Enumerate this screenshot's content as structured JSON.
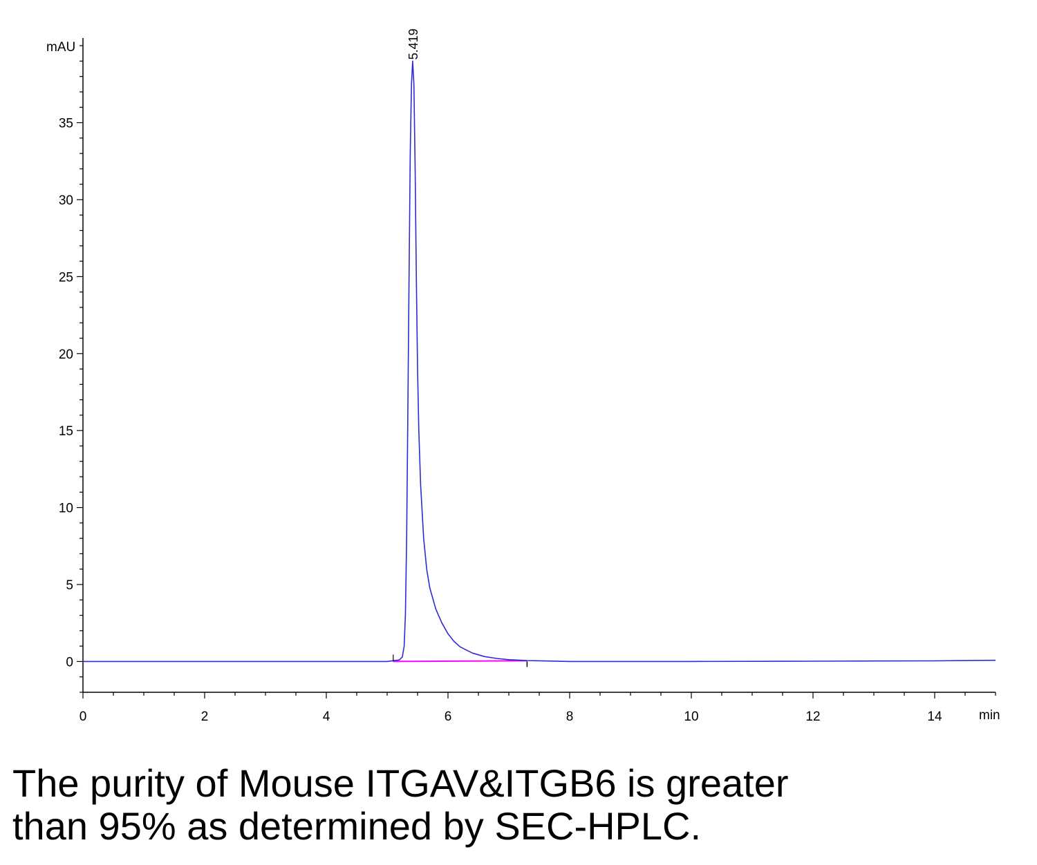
{
  "chart_data": {
    "type": "line",
    "title": "",
    "xlabel": "min",
    "ylabel": "mAU",
    "xlim": [
      0,
      15
    ],
    "ylim": [
      -2,
      40.5
    ],
    "x_ticks": [
      0,
      2,
      4,
      6,
      8,
      10,
      12,
      14
    ],
    "y_ticks": [
      0,
      5,
      10,
      15,
      20,
      25,
      30,
      35
    ],
    "x_tick_labels": [
      "0",
      "2",
      "4",
      "6",
      "8",
      "10",
      "12",
      "14"
    ],
    "y_tick_labels": [
      "0",
      "5",
      "10",
      "15",
      "20",
      "25",
      "30",
      "35"
    ],
    "grid": false,
    "series": [
      {
        "color": "#2b2bd6",
        "x": [
          0,
          4.5,
          5.0,
          5.1,
          5.2,
          5.25,
          5.28,
          5.3,
          5.32,
          5.34,
          5.36,
          5.38,
          5.4,
          5.419,
          5.44,
          5.46,
          5.48,
          5.5,
          5.52,
          5.55,
          5.6,
          5.65,
          5.7,
          5.8,
          5.9,
          6.0,
          6.1,
          6.2,
          6.4,
          6.6,
          6.8,
          7.0,
          7.3,
          8.0,
          10.0,
          12.0,
          14.0,
          15.0
        ],
        "y": [
          0,
          0,
          0,
          0.05,
          0.1,
          0.3,
          1.0,
          3.0,
          8.0,
          16.0,
          25.0,
          33.0,
          37.5,
          39.0,
          37.5,
          32.0,
          25.0,
          19.0,
          15.0,
          11.5,
          8.0,
          6.0,
          4.8,
          3.4,
          2.5,
          1.8,
          1.3,
          0.95,
          0.55,
          0.32,
          0.2,
          0.12,
          0.06,
          0,
          0,
          0.02,
          0.04,
          0.08
        ]
      }
    ],
    "baseline": {
      "color": "#ff00ff",
      "x": [
        5.1,
        7.3
      ],
      "y": [
        0,
        0.05
      ]
    },
    "peaks": [
      {
        "x": 5.419,
        "y": 39.0,
        "label": "5.419"
      }
    ]
  },
  "caption": {
    "line1": "The purity of Mouse ITGAV&ITGB6 is greater",
    "line2": "than 95% as determined by SEC-HPLC."
  }
}
